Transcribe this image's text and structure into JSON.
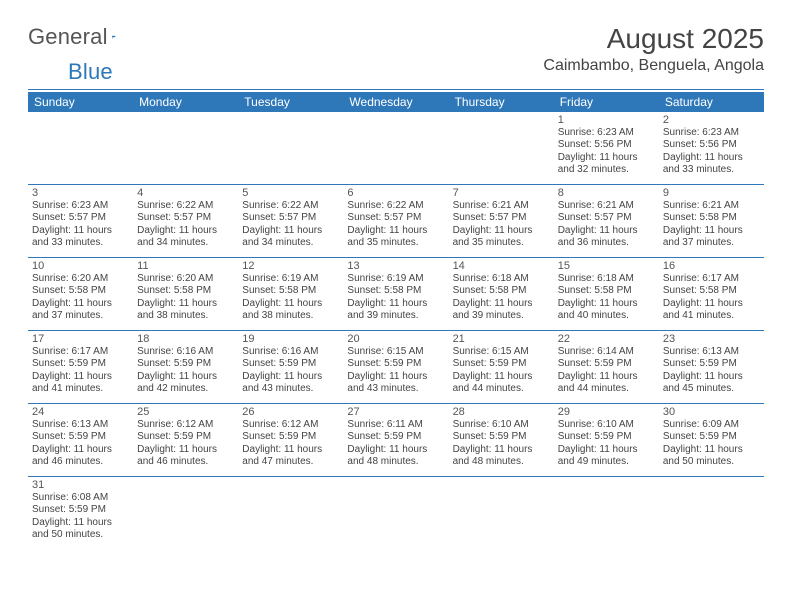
{
  "brand": {
    "word1": "General",
    "word2": "Blue"
  },
  "title": {
    "month": "August 2025",
    "location": "Caimbambo, Benguela, Angola"
  },
  "colors": {
    "accent": "#2e77b8",
    "text": "#444444",
    "bg": "#ffffff"
  },
  "calendar": {
    "type": "table",
    "columns": [
      "Sunday",
      "Monday",
      "Tuesday",
      "Wednesday",
      "Thursday",
      "Friday",
      "Saturday"
    ],
    "weeks": [
      [
        null,
        null,
        null,
        null,
        null,
        {
          "n": "1",
          "sunrise": "6:23 AM",
          "sunset": "5:56 PM",
          "day_h": 11,
          "day_m": 32
        },
        {
          "n": "2",
          "sunrise": "6:23 AM",
          "sunset": "5:56 PM",
          "day_h": 11,
          "day_m": 33
        }
      ],
      [
        {
          "n": "3",
          "sunrise": "6:23 AM",
          "sunset": "5:57 PM",
          "day_h": 11,
          "day_m": 33
        },
        {
          "n": "4",
          "sunrise": "6:22 AM",
          "sunset": "5:57 PM",
          "day_h": 11,
          "day_m": 34
        },
        {
          "n": "5",
          "sunrise": "6:22 AM",
          "sunset": "5:57 PM",
          "day_h": 11,
          "day_m": 34
        },
        {
          "n": "6",
          "sunrise": "6:22 AM",
          "sunset": "5:57 PM",
          "day_h": 11,
          "day_m": 35
        },
        {
          "n": "7",
          "sunrise": "6:21 AM",
          "sunset": "5:57 PM",
          "day_h": 11,
          "day_m": 35
        },
        {
          "n": "8",
          "sunrise": "6:21 AM",
          "sunset": "5:57 PM",
          "day_h": 11,
          "day_m": 36
        },
        {
          "n": "9",
          "sunrise": "6:21 AM",
          "sunset": "5:58 PM",
          "day_h": 11,
          "day_m": 37
        }
      ],
      [
        {
          "n": "10",
          "sunrise": "6:20 AM",
          "sunset": "5:58 PM",
          "day_h": 11,
          "day_m": 37
        },
        {
          "n": "11",
          "sunrise": "6:20 AM",
          "sunset": "5:58 PM",
          "day_h": 11,
          "day_m": 38
        },
        {
          "n": "12",
          "sunrise": "6:19 AM",
          "sunset": "5:58 PM",
          "day_h": 11,
          "day_m": 38
        },
        {
          "n": "13",
          "sunrise": "6:19 AM",
          "sunset": "5:58 PM",
          "day_h": 11,
          "day_m": 39
        },
        {
          "n": "14",
          "sunrise": "6:18 AM",
          "sunset": "5:58 PM",
          "day_h": 11,
          "day_m": 39
        },
        {
          "n": "15",
          "sunrise": "6:18 AM",
          "sunset": "5:58 PM",
          "day_h": 11,
          "day_m": 40
        },
        {
          "n": "16",
          "sunrise": "6:17 AM",
          "sunset": "5:58 PM",
          "day_h": 11,
          "day_m": 41
        }
      ],
      [
        {
          "n": "17",
          "sunrise": "6:17 AM",
          "sunset": "5:59 PM",
          "day_h": 11,
          "day_m": 41
        },
        {
          "n": "18",
          "sunrise": "6:16 AM",
          "sunset": "5:59 PM",
          "day_h": 11,
          "day_m": 42
        },
        {
          "n": "19",
          "sunrise": "6:16 AM",
          "sunset": "5:59 PM",
          "day_h": 11,
          "day_m": 43
        },
        {
          "n": "20",
          "sunrise": "6:15 AM",
          "sunset": "5:59 PM",
          "day_h": 11,
          "day_m": 43
        },
        {
          "n": "21",
          "sunrise": "6:15 AM",
          "sunset": "5:59 PM",
          "day_h": 11,
          "day_m": 44
        },
        {
          "n": "22",
          "sunrise": "6:14 AM",
          "sunset": "5:59 PM",
          "day_h": 11,
          "day_m": 44
        },
        {
          "n": "23",
          "sunrise": "6:13 AM",
          "sunset": "5:59 PM",
          "day_h": 11,
          "day_m": 45
        }
      ],
      [
        {
          "n": "24",
          "sunrise": "6:13 AM",
          "sunset": "5:59 PM",
          "day_h": 11,
          "day_m": 46
        },
        {
          "n": "25",
          "sunrise": "6:12 AM",
          "sunset": "5:59 PM",
          "day_h": 11,
          "day_m": 46
        },
        {
          "n": "26",
          "sunrise": "6:12 AM",
          "sunset": "5:59 PM",
          "day_h": 11,
          "day_m": 47
        },
        {
          "n": "27",
          "sunrise": "6:11 AM",
          "sunset": "5:59 PM",
          "day_h": 11,
          "day_m": 48
        },
        {
          "n": "28",
          "sunrise": "6:10 AM",
          "sunset": "5:59 PM",
          "day_h": 11,
          "day_m": 48
        },
        {
          "n": "29",
          "sunrise": "6:10 AM",
          "sunset": "5:59 PM",
          "day_h": 11,
          "day_m": 49
        },
        {
          "n": "30",
          "sunrise": "6:09 AM",
          "sunset": "5:59 PM",
          "day_h": 11,
          "day_m": 50
        }
      ],
      [
        {
          "n": "31",
          "sunrise": "6:08 AM",
          "sunset": "5:59 PM",
          "day_h": 11,
          "day_m": 50
        },
        null,
        null,
        null,
        null,
        null,
        null
      ]
    ],
    "labels": {
      "sunrise": "Sunrise:",
      "sunset": "Sunset:",
      "daylight_prefix": "Daylight:",
      "hours_word": "hours",
      "and_word": "and",
      "minutes_word": "minutes."
    }
  }
}
